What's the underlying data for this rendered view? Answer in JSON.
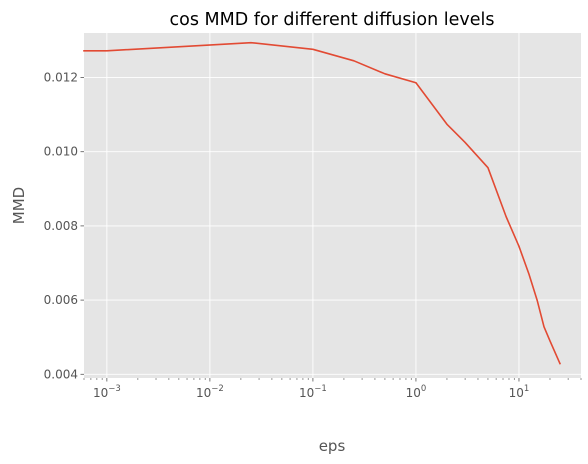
{
  "chart_data": {
    "type": "line",
    "title": "cos MMD for different diffusion levels",
    "xlabel": "eps",
    "ylabel": "MMD",
    "x_scale": "log",
    "xlim": [
      0.0006,
      40
    ],
    "ylim": [
      0.0039,
      0.0132
    ],
    "grid": true,
    "x_ticks": [
      {
        "value": 0.001,
        "base": "10",
        "exp": "−3"
      },
      {
        "value": 0.01,
        "base": "10",
        "exp": "−2"
      },
      {
        "value": 0.1,
        "base": "10",
        "exp": "−1"
      },
      {
        "value": 1,
        "base": "10",
        "exp": "0"
      },
      {
        "value": 10,
        "base": "10",
        "exp": "1"
      }
    ],
    "y_ticks": [
      {
        "value": 0.004,
        "label": "0.004"
      },
      {
        "value": 0.006,
        "label": "0.006"
      },
      {
        "value": 0.008,
        "label": "0.008"
      },
      {
        "value": 0.01,
        "label": "0.010"
      },
      {
        "value": 0.012,
        "label": "0.012"
      }
    ],
    "series": [
      {
        "color": "#E24A33",
        "x": [
          0.0006,
          0.001,
          0.025,
          0.1,
          0.25,
          0.5,
          1,
          2,
          3,
          5,
          7.5,
          10,
          12.5,
          15,
          17.5,
          20,
          25
        ],
        "y": [
          0.01272,
          0.01272,
          0.01294,
          0.01276,
          0.01245,
          0.0121,
          0.01186,
          0.01074,
          0.01025,
          0.00957,
          0.00825,
          0.00745,
          0.0067,
          0.006,
          0.00528,
          0.0049,
          0.00429
        ]
      }
    ]
  }
}
